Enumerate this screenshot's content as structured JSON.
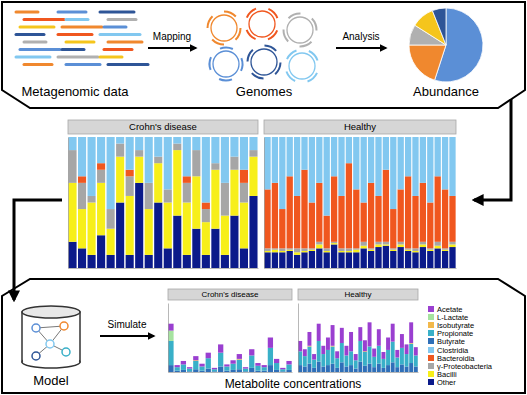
{
  "steps": [
    "Metagenomic data",
    "Genomes",
    "Abundance",
    "Model",
    "Metabolite concentrations"
  ],
  "arrow_labels": [
    "Mapping",
    "Analysis",
    "Simulate"
  ],
  "chart_data": [
    {
      "type": "pie",
      "values": [
        55,
        20,
        9,
        10,
        6
      ],
      "colors": [
        "#5b8fd6",
        "#f0882e",
        "#b0b0b0",
        "#f5c51c",
        "#2e5597"
      ]
    },
    {
      "type": "bar",
      "title": "Crohn's disease",
      "stacked": true,
      "tick_labels": false,
      "ylim": [
        0,
        100
      ],
      "categories": [
        null,
        null,
        null,
        null,
        null,
        null,
        null,
        null,
        null,
        null,
        null,
        null,
        null,
        null,
        null,
        null,
        null,
        null,
        null,
        null
      ],
      "series": [
        {
          "name": "Clostridia",
          "color": "#82c8f0",
          "values": [
            10,
            30,
            45,
            20,
            55,
            5,
            25,
            10,
            35,
            15,
            40,
            5,
            30,
            10,
            50,
            20,
            35,
            15,
            25,
            10
          ]
        },
        {
          "name": "Bacteroidia",
          "color": "#f0571f",
          "values": [
            0,
            5,
            0,
            5,
            0,
            0,
            5,
            0,
            0,
            0,
            0,
            0,
            5,
            0,
            5,
            0,
            0,
            0,
            10,
            0
          ]
        },
        {
          "name": "γ-Proteobacteria",
          "color": "#a6a6a6",
          "values": [
            25,
            20,
            5,
            10,
            15,
            10,
            15,
            5,
            20,
            5,
            10,
            5,
            15,
            20,
            10,
            5,
            25,
            10,
            15,
            5
          ]
        },
        {
          "name": "Bacilli",
          "color": "#f7ef1a",
          "values": [
            45,
            30,
            40,
            40,
            20,
            35,
            45,
            20,
            35,
            30,
            35,
            50,
            40,
            40,
            25,
            45,
            30,
            35,
            35,
            30
          ]
        },
        {
          "name": "Other",
          "color": "#0b1a8a",
          "values": [
            20,
            15,
            10,
            25,
            10,
            50,
            10,
            65,
            10,
            50,
            15,
            40,
            10,
            30,
            10,
            30,
            10,
            40,
            15,
            55
          ]
        }
      ]
    },
    {
      "type": "bar",
      "title": "Healthy",
      "stacked": true,
      "tick_labels": false,
      "ylim": [
        0,
        100
      ],
      "categories": [
        null,
        null,
        null,
        null,
        null,
        null,
        null,
        null,
        null,
        null,
        null,
        null,
        null,
        null,
        null,
        null,
        null,
        null,
        null,
        null,
        null,
        null,
        null,
        null,
        null,
        null
      ],
      "series": [
        {
          "color": "#82c8f0",
          "values": [
            40,
            35,
            55,
            30,
            45,
            25,
            50,
            35,
            60,
            30,
            45,
            20,
            40,
            50,
            35,
            45,
            25,
            55,
            40,
            30,
            45,
            35,
            50,
            30,
            40,
            45
          ]
        },
        {
          "color": "#f0571f",
          "values": [
            45,
            50,
            30,
            55,
            40,
            60,
            35,
            45,
            25,
            50,
            40,
            65,
            45,
            30,
            50,
            35,
            55,
            30,
            40,
            55,
            40,
            45,
            35,
            50,
            45,
            35
          ]
        },
        {
          "color": "#a6a6a6",
          "values": [
            2,
            1,
            2,
            1,
            3,
            2,
            1,
            2,
            2,
            1,
            2,
            2,
            1,
            3,
            1,
            2,
            2,
            1,
            2,
            1,
            2,
            2,
            1,
            3,
            1,
            2
          ]
        },
        {
          "color": "#f7ef1a",
          "values": [
            1,
            2,
            1,
            1,
            2,
            1,
            1,
            3,
            1,
            1,
            1,
            1,
            2,
            2,
            1,
            2,
            1,
            1,
            2,
            1,
            1,
            2,
            1,
            2,
            1,
            2
          ]
        },
        {
          "color": "#0b1a8a",
          "values": [
            12,
            12,
            12,
            13,
            10,
            12,
            13,
            15,
            12,
            18,
            12,
            12,
            12,
            15,
            13,
            16,
            17,
            13,
            16,
            13,
            12,
            16,
            13,
            15,
            13,
            16
          ]
        }
      ]
    },
    {
      "type": "bar",
      "title": "Crohn's disease",
      "stacked": true,
      "tick_labels": false,
      "ylim": [
        0,
        100
      ],
      "categories": [
        null,
        null,
        null,
        null,
        null,
        null,
        null,
        null,
        null,
        null,
        null,
        null,
        null,
        null,
        null,
        null,
        null,
        null,
        null,
        null
      ],
      "series": [
        {
          "name": "Acetate",
          "color": "#9a3fd0",
          "values": [
            10,
            3,
            5,
            2,
            6,
            4,
            8,
            2,
            12,
            3,
            5,
            7,
            2,
            9,
            4,
            3,
            15,
            6,
            2,
            5
          ]
        },
        {
          "name": "L-Lactate",
          "color": "#a6e3a0",
          "values": [
            15,
            0,
            0,
            0,
            0,
            0,
            0,
            0,
            0,
            0,
            0,
            0,
            0,
            0,
            0,
            0,
            0,
            0,
            0,
            0
          ]
        },
        {
          "name": "Isobutyrate",
          "color": "#f2b84b",
          "values": [
            0,
            0,
            0,
            0,
            1,
            0,
            0,
            0,
            0,
            0,
            0,
            1,
            0,
            0,
            0,
            0,
            0,
            0,
            0,
            0
          ]
        },
        {
          "name": "Propionate",
          "color": "#39b0c8",
          "values": [
            35,
            5,
            8,
            4,
            12,
            6,
            15,
            3,
            20,
            6,
            9,
            14,
            4,
            18,
            7,
            5,
            25,
            10,
            3,
            8
          ]
        },
        {
          "name": "Butyrate",
          "color": "#2f6fb8",
          "values": [
            10,
            2,
            3,
            1,
            4,
            2,
            5,
            1,
            8,
            2,
            3,
            4,
            1,
            6,
            2,
            2,
            10,
            3,
            1,
            3
          ]
        }
      ]
    },
    {
      "type": "bar",
      "title": "Healthy",
      "stacked": true,
      "tick_labels": false,
      "ylim": [
        0,
        100
      ],
      "categories": [
        null,
        null,
        null,
        null,
        null,
        null,
        null,
        null,
        null,
        null,
        null,
        null,
        null,
        null,
        null,
        null,
        null,
        null,
        null,
        null,
        null,
        null,
        null,
        null,
        null,
        null
      ],
      "series": [
        {
          "color": "#9a3fd0",
          "values": [
            15,
            10,
            20,
            8,
            25,
            12,
            18,
            30,
            10,
            22,
            14,
            28,
            9,
            20,
            16,
            35,
            12,
            24,
            10,
            18,
            26,
            11,
            20,
            14,
            30,
            12
          ]
        },
        {
          "color": "#a6e3a0",
          "values": [
            0,
            0,
            0,
            0,
            0,
            0,
            0,
            0,
            0,
            0,
            0,
            0,
            0,
            0,
            0,
            0,
            0,
            0,
            0,
            0,
            0,
            0,
            0,
            0,
            0,
            0
          ]
        },
        {
          "color": "#f2b84b",
          "values": [
            0,
            0,
            1,
            0,
            0,
            0,
            0,
            1,
            0,
            0,
            0,
            0,
            0,
            0,
            1,
            0,
            0,
            0,
            0,
            0,
            0,
            0,
            0,
            0,
            1,
            0
          ]
        },
        {
          "color": "#39b0c8",
          "values": [
            20,
            15,
            25,
            12,
            30,
            18,
            22,
            25,
            14,
            28,
            16,
            20,
            12,
            30,
            20,
            25,
            15,
            26,
            13,
            22,
            30,
            14,
            24,
            18,
            28,
            16
          ]
        },
        {
          "color": "#2f6fb8",
          "values": [
            10,
            8,
            12,
            6,
            15,
            8,
            10,
            12,
            6,
            14,
            8,
            10,
            5,
            15,
            9,
            12,
            7,
            12,
            6,
            10,
            14,
            7,
            11,
            8,
            13,
            8
          ]
        }
      ]
    }
  ]
}
